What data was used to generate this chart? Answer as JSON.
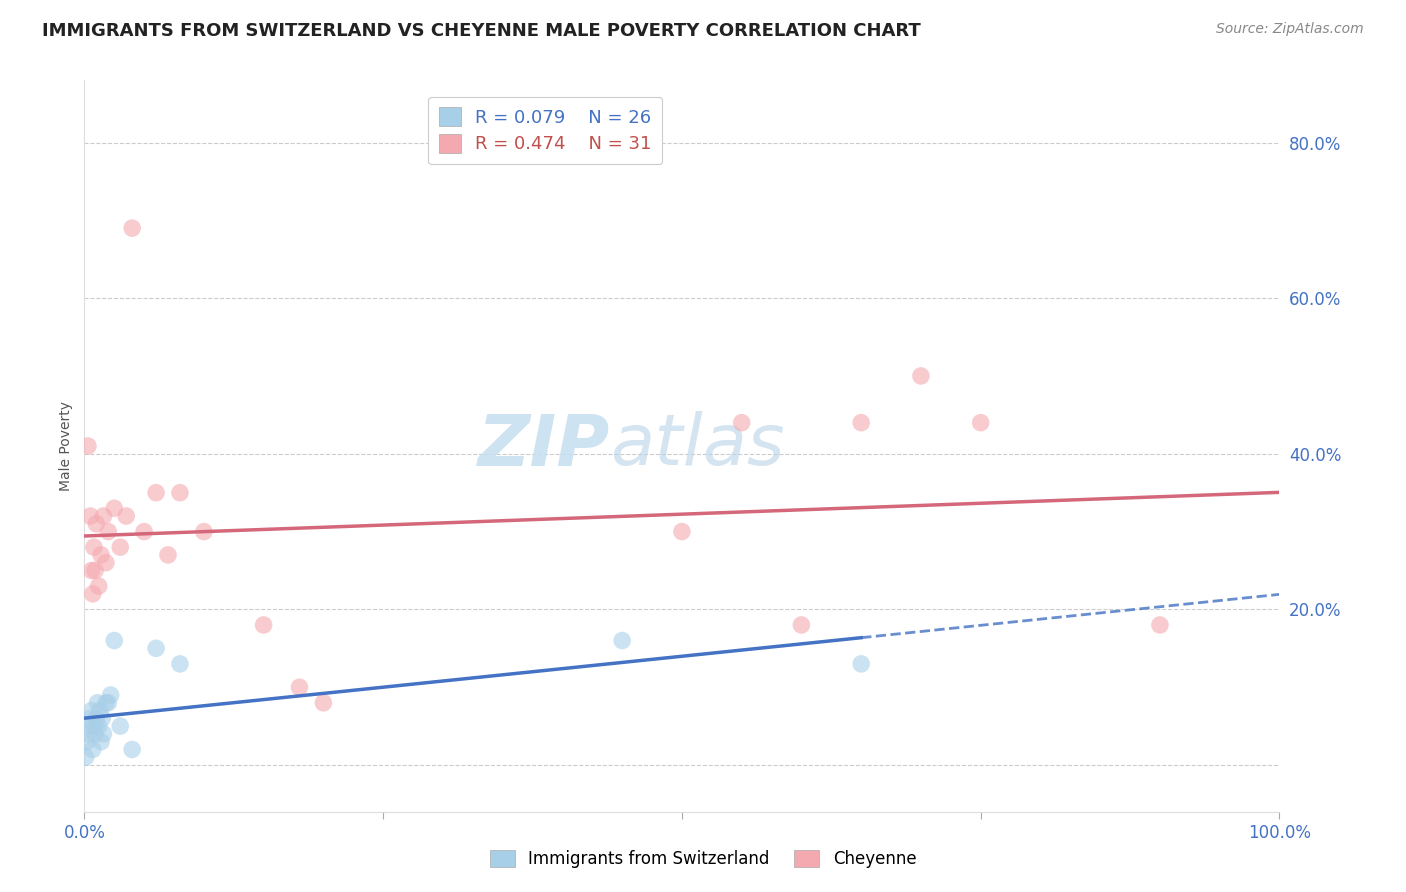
{
  "title": "IMMIGRANTS FROM SWITZERLAND VS CHEYENNE MALE POVERTY CORRELATION CHART",
  "source": "Source: ZipAtlas.com",
  "ylabel": "Male Poverty",
  "y_ticks": [
    0.0,
    0.2,
    0.4,
    0.6,
    0.8
  ],
  "y_tick_labels": [
    "",
    "20.0%",
    "40.0%",
    "60.0%",
    "80.0%"
  ],
  "xmin": 0.0,
  "xmax": 1.0,
  "ymin": -0.06,
  "ymax": 0.88,
  "watermark_zip": "ZIP",
  "watermark_atlas": "atlas",
  "legend_blue_r": "R = 0.079",
  "legend_blue_n": "N = 26",
  "legend_pink_r": "R = 0.474",
  "legend_pink_n": "N = 31",
  "legend_blue_label": "Immigrants from Switzerland",
  "legend_pink_label": "Cheyenne",
  "blue_color": "#a8cfe8",
  "pink_color": "#f4a9b0",
  "blue_line_color": "#4472c4",
  "pink_line_color": "#d4687a",
  "blue_scatter": [
    [
      0.001,
      0.01
    ],
    [
      0.002,
      0.03
    ],
    [
      0.003,
      0.04
    ],
    [
      0.004,
      0.05
    ],
    [
      0.005,
      0.06
    ],
    [
      0.006,
      0.07
    ],
    [
      0.007,
      0.02
    ],
    [
      0.008,
      0.05
    ],
    [
      0.009,
      0.04
    ],
    [
      0.01,
      0.06
    ],
    [
      0.011,
      0.08
    ],
    [
      0.012,
      0.05
    ],
    [
      0.013,
      0.07
    ],
    [
      0.014,
      0.03
    ],
    [
      0.015,
      0.06
    ],
    [
      0.016,
      0.04
    ],
    [
      0.018,
      0.08
    ],
    [
      0.02,
      0.08
    ],
    [
      0.022,
      0.09
    ],
    [
      0.025,
      0.16
    ],
    [
      0.03,
      0.05
    ],
    [
      0.04,
      0.02
    ],
    [
      0.06,
      0.15
    ],
    [
      0.08,
      0.13
    ],
    [
      0.45,
      0.16
    ],
    [
      0.65,
      0.13
    ]
  ],
  "pink_scatter": [
    [
      0.003,
      0.41
    ],
    [
      0.005,
      0.32
    ],
    [
      0.006,
      0.25
    ],
    [
      0.007,
      0.22
    ],
    [
      0.008,
      0.28
    ],
    [
      0.009,
      0.25
    ],
    [
      0.01,
      0.31
    ],
    [
      0.012,
      0.23
    ],
    [
      0.014,
      0.27
    ],
    [
      0.016,
      0.32
    ],
    [
      0.018,
      0.26
    ],
    [
      0.02,
      0.3
    ],
    [
      0.025,
      0.33
    ],
    [
      0.03,
      0.28
    ],
    [
      0.035,
      0.32
    ],
    [
      0.04,
      0.69
    ],
    [
      0.05,
      0.3
    ],
    [
      0.06,
      0.35
    ],
    [
      0.07,
      0.27
    ],
    [
      0.08,
      0.35
    ],
    [
      0.1,
      0.3
    ],
    [
      0.15,
      0.18
    ],
    [
      0.18,
      0.1
    ],
    [
      0.2,
      0.08
    ],
    [
      0.5,
      0.3
    ],
    [
      0.55,
      0.44
    ],
    [
      0.6,
      0.18
    ],
    [
      0.65,
      0.44
    ],
    [
      0.7,
      0.5
    ],
    [
      0.75,
      0.44
    ],
    [
      0.9,
      0.18
    ]
  ],
  "title_fontsize": 13,
  "axis_label_fontsize": 10,
  "tick_fontsize": 12,
  "legend_fontsize": 13,
  "source_fontsize": 10
}
